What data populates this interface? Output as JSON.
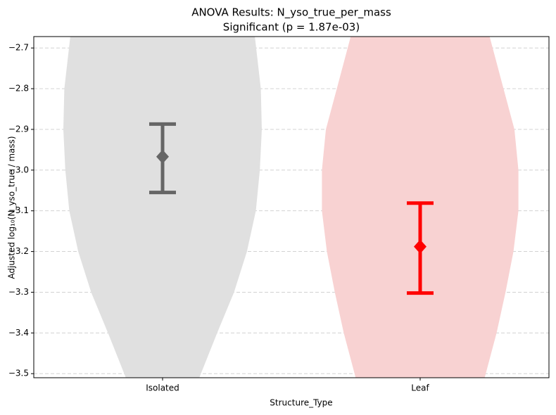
{
  "chart_data": {
    "type": "violin",
    "title": "ANOVA Results: N_yso_true_per_mass",
    "subtitle": "Significant (p = 1.87e-03)",
    "x_label": "Structure_Type",
    "y_label": "Adjusted log₁₀(N_yso_true / mass)",
    "categories": [
      "Isolated",
      "Leaf"
    ],
    "ylim": [
      -3.51,
      -2.672
    ],
    "yticks": [
      {
        "value": -2.7,
        "label": "−2.7"
      },
      {
        "value": -2.8,
        "label": "−2.8"
      },
      {
        "value": -2.9,
        "label": "−2.9"
      },
      {
        "value": -3.0,
        "label": "−3.0"
      },
      {
        "value": -3.1,
        "label": "−3.1"
      },
      {
        "value": -3.2,
        "label": "−3.2"
      },
      {
        "value": -3.3,
        "label": "−3.3"
      },
      {
        "value": -3.4,
        "label": "−3.4"
      },
      {
        "value": -3.5,
        "label": "−3.5"
      }
    ],
    "grid": true,
    "density_y": [
      -2.672,
      -2.8,
      -2.9,
      -3.0,
      -3.1,
      -3.2,
      -3.3,
      -3.4,
      -3.51
    ],
    "series": [
      {
        "name": "Isolated",
        "violin_color": "#e0e0e0",
        "color": "#666666",
        "density": [
          0.93,
          0.99,
          1.0,
          0.98,
          0.94,
          0.85,
          0.72,
          0.55,
          0.37
        ],
        "mean": -2.967,
        "ci_low": -3.055,
        "ci_high": -2.887
      },
      {
        "name": "Leaf",
        "violin_color": "#f8d2d2",
        "color": "#ff0000",
        "density": [
          0.7,
          0.84,
          0.95,
          0.99,
          0.99,
          0.94,
          0.86,
          0.77,
          0.65
        ],
        "mean": -3.188,
        "ci_low": -3.302,
        "ci_high": -3.081
      }
    ]
  }
}
